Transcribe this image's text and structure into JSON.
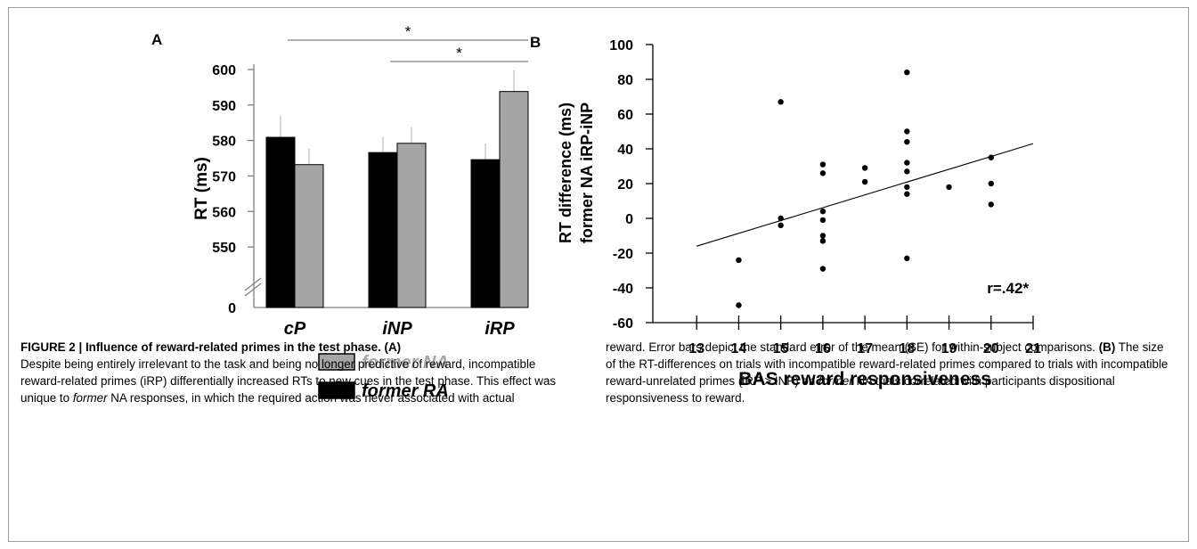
{
  "figure": {
    "caption_title": "FIGURE 2 | Influence of reward-related primes in the test phase. (A)",
    "caption_left_parts": [
      {
        "text": "Despite being entirely irrelevant to the task and being no longer predictive of reward, incompatible reward-related primes (iRP) differentially increased RTs to new cues in the test phase. This effect was unique to ",
        "style": "normal"
      },
      {
        "text": "former",
        "style": "italic"
      },
      {
        "text": " NA responses, in which the required action was never associated with actual",
        "style": "normal"
      }
    ],
    "caption_right_parts": [
      {
        "text": "reward. Error bars depict the standard error of the mean (SE) for within-subject comparisons. ",
        "style": "normal"
      },
      {
        "text": "(B)",
        "style": "bold"
      },
      {
        "text": " The size of the RT-differences on trials with incompatible reward-related primes compared to trials with incompatible reward-unrelated primes (iRP > INP) on ",
        "style": "normal"
      },
      {
        "text": "former",
        "style": "italic"
      },
      {
        "text": " NA trials correlated with participants dispositional responsiveness to reward.",
        "style": "normal"
      }
    ]
  },
  "chart_data": [
    {
      "panel_label": "A",
      "type": "bar",
      "categories": [
        "cP",
        "iNP",
        "iRP"
      ],
      "ylabel": "RT  (ms)",
      "ylim": [
        545,
        600
      ],
      "y_ticks": [
        "550",
        "560",
        "570",
        "580",
        "590",
        "600"
      ],
      "y_zero_label": "0",
      "axis_break": true,
      "series": [
        {
          "name": "former RA",
          "color": "#000000",
          "values": [
            580.9,
            576.6,
            574.6
          ],
          "se": [
            6.0,
            4.5,
            4.5
          ]
        },
        {
          "name": "former NA",
          "color": "#a6a6a6",
          "values": [
            573.2,
            579.2,
            593.8
          ],
          "se": [
            4.5,
            4.5,
            6.0
          ]
        }
      ],
      "legend_position": "bottom",
      "significance": [
        {
          "from": "cP",
          "to": "iRP",
          "label": "*"
        },
        {
          "from": "iNP",
          "to": "iRP",
          "label": "*"
        }
      ]
    },
    {
      "panel_label": "B",
      "type": "scatter",
      "xlabel": "BAS reward responsiveness",
      "ylabel_lines": [
        "RT difference (ms)",
        "former NA iRP-iNP"
      ],
      "xlim": [
        12,
        21
      ],
      "ylim": [
        -60,
        100
      ],
      "x_ticks": [
        "13",
        "14",
        "15",
        "16",
        "17",
        "18",
        "19",
        "20",
        "21"
      ],
      "y_ticks": [
        "-60",
        "-40",
        "-20",
        "0",
        "20",
        "40",
        "60",
        "80",
        "100"
      ],
      "points": [
        {
          "x": 14,
          "y": -24
        },
        {
          "x": 14,
          "y": -50
        },
        {
          "x": 15,
          "y": 67
        },
        {
          "x": 15,
          "y": 0
        },
        {
          "x": 15,
          "y": -4
        },
        {
          "x": 16,
          "y": 31
        },
        {
          "x": 16,
          "y": 26
        },
        {
          "x": 16,
          "y": 4
        },
        {
          "x": 16,
          "y": -1
        },
        {
          "x": 16,
          "y": -10
        },
        {
          "x": 16,
          "y": -13
        },
        {
          "x": 16,
          "y": -29
        },
        {
          "x": 17,
          "y": 29
        },
        {
          "x": 17,
          "y": 21
        },
        {
          "x": 18,
          "y": 84
        },
        {
          "x": 18,
          "y": 50
        },
        {
          "x": 18,
          "y": 44
        },
        {
          "x": 18,
          "y": 32
        },
        {
          "x": 18,
          "y": 27
        },
        {
          "x": 18,
          "y": 18
        },
        {
          "x": 18,
          "y": 14
        },
        {
          "x": 18,
          "y": -23
        },
        {
          "x": 19,
          "y": 18
        },
        {
          "x": 20,
          "y": 35
        },
        {
          "x": 20,
          "y": 20
        },
        {
          "x": 20,
          "y": 8
        }
      ],
      "fit_line": {
        "x": [
          13,
          21
        ],
        "y": [
          -16,
          43
        ]
      },
      "annotation": "r=.42*"
    }
  ]
}
